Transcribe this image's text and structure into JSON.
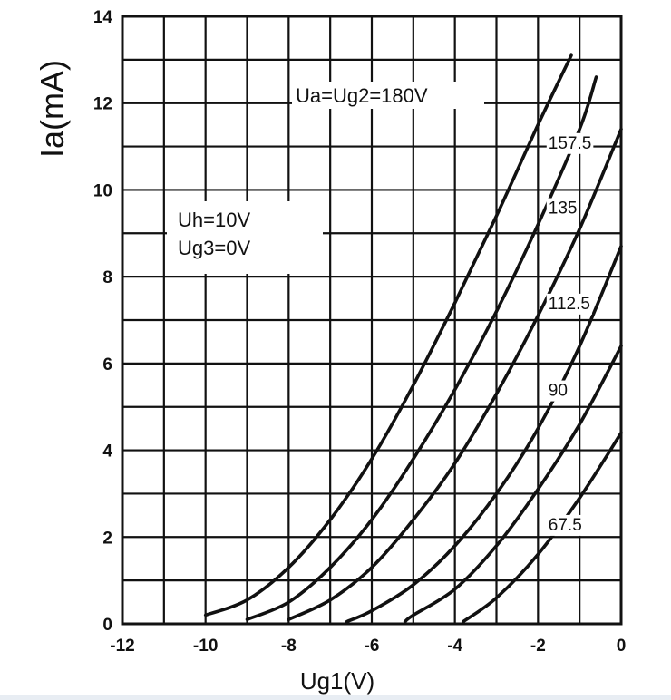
{
  "chart_data": {
    "type": "line",
    "title": "",
    "xlabel": "Ug1(V)",
    "ylabel": "Ia(mA)",
    "xlim": [
      -12,
      0
    ],
    "ylim": [
      0,
      14
    ],
    "x_ticks": [
      "-12",
      "-10",
      "-8",
      "-6",
      "-4",
      "-2",
      "0"
    ],
    "y_ticks": [
      "0",
      "2",
      "4",
      "6",
      "8",
      "10",
      "12",
      "14"
    ],
    "grid": true,
    "annotations": [
      "Ua=Ug2=180V",
      "Uh=10V",
      "Ug3=0V"
    ],
    "series": [
      {
        "name": "157.5",
        "x": [
          -10,
          -9,
          -8,
          -7,
          -6,
          -5,
          -4,
          -3,
          -2,
          -1.2
        ],
        "y": [
          0.2,
          0.55,
          1.3,
          2.4,
          3.8,
          5.5,
          7.4,
          9.4,
          11.5,
          13.1
        ]
      },
      {
        "name": "135",
        "x": [
          -9,
          -8,
          -7,
          -6,
          -5,
          -4,
          -3,
          -2,
          -1,
          -0.6
        ],
        "y": [
          0.1,
          0.5,
          1.3,
          2.4,
          3.8,
          5.4,
          7.2,
          9.2,
          11.4,
          12.6
        ]
      },
      {
        "name": "112.5",
        "x": [
          -8,
          -7,
          -6,
          -5,
          -4,
          -3,
          -2,
          -1,
          0
        ],
        "y": [
          0.1,
          0.55,
          1.3,
          2.4,
          3.7,
          5.3,
          7.1,
          9.1,
          11.4
        ]
      },
      {
        "name": "90",
        "x": [
          -6.6,
          -6,
          -5,
          -4,
          -3,
          -2,
          -1,
          0
        ],
        "y": [
          0.05,
          0.3,
          0.9,
          1.8,
          3.0,
          4.5,
          6.4,
          8.7
        ]
      },
      {
        "name": "67.5",
        "x": [
          -5.2,
          -5,
          -4,
          -3,
          -2,
          -1,
          0
        ],
        "y": [
          0.05,
          0.2,
          0.8,
          1.8,
          3.1,
          4.6,
          6.4
        ]
      },
      {
        "name": "",
        "x": [
          -3.8,
          -3,
          -2,
          -1,
          0
        ],
        "y": [
          0.05,
          0.6,
          1.6,
          2.9,
          4.4
        ]
      }
    ]
  }
}
